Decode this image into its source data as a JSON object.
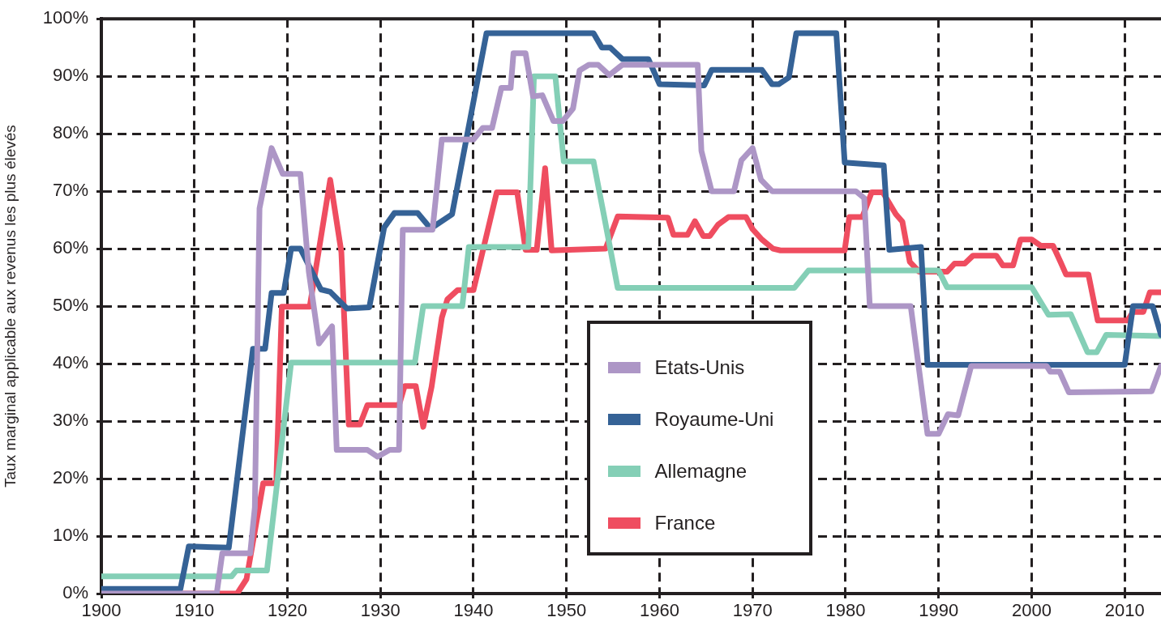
{
  "chart_data": {
    "type": "line",
    "ylabel": "Taux marginal applicable aux revenus les plus élevés",
    "xlim": [
      1900,
      2013.9
    ],
    "xticks": [
      1900,
      1910,
      1920,
      1930,
      1940,
      1950,
      1960,
      1970,
      1980,
      1990,
      2000,
      2010
    ],
    "ylim": [
      0,
      100
    ],
    "yticks": [
      {
        "value": 0,
        "label": "0%"
      },
      {
        "value": 10,
        "label": "10%"
      },
      {
        "value": 20,
        "label": "20%"
      },
      {
        "value": 30,
        "label": "30%"
      },
      {
        "value": 40,
        "label": "40%"
      },
      {
        "value": 50,
        "label": "50%"
      },
      {
        "value": 60,
        "label": "60%"
      },
      {
        "value": 70,
        "label": "70%"
      },
      {
        "value": 80,
        "label": "80%"
      },
      {
        "value": 90,
        "label": "90%"
      },
      {
        "value": 100,
        "label": "100%"
      }
    ],
    "grid": true,
    "legend": "bottom",
    "marker": "none",
    "line_style": "solid",
    "series": [
      {
        "name": "Etats-Unis",
        "color": "#ad96c6",
        "x": [
          1900,
          1912.4,
          1913,
          1916,
          1916.5,
          1917,
          1918.3,
          1919.5,
          1921.4,
          1922.3,
          1923.4,
          1924.8,
          1925.3,
          1928.6,
          1929.7,
          1931,
          1932,
          1932.4,
          1935.6,
          1936.6,
          1940,
          1941,
          1942,
          1943,
          1944,
          1944.3,
          1945.6,
          1946.4,
          1947.4,
          1948.6,
          1949.6,
          1950.7,
          1951.4,
          1952.4,
          1953.4,
          1954.6,
          1956,
          1964.1,
          1964.5,
          1965.6,
          1968,
          1968.8,
          1970,
          1970.9,
          1972.1,
          1981.1,
          1982,
          1982.6,
          1987,
          1988.8,
          1990,
          1991,
          1992.1,
          1993.5,
          2001.6,
          2002,
          2003,
          2004,
          2012.9,
          2013.9
        ],
        "values": [
          0,
          0,
          7,
          7,
          15,
          67,
          77.5,
          73,
          73,
          56,
          43.5,
          46.5,
          25,
          25,
          23.8,
          25,
          25,
          63.3,
          63.3,
          79,
          79,
          81,
          81,
          88,
          88,
          94,
          94,
          86.5,
          86.7,
          82.2,
          82.2,
          84.4,
          91,
          92,
          92,
          90.2,
          92,
          92,
          77,
          70,
          70,
          75.4,
          77.5,
          72,
          70,
          70,
          68.8,
          50,
          50,
          27.8,
          27.8,
          31.2,
          31,
          39.6,
          39.6,
          38.6,
          38.6,
          35,
          35.2,
          39.6
        ]
      },
      {
        "name": "Royaume-Uni",
        "color": "#356296",
        "x": [
          1900,
          1908.5,
          1909.4,
          1913.7,
          1916.3,
          1917.6,
          1918.3,
          1919.6,
          1920.4,
          1921.4,
          1923.6,
          1924.6,
          1926.4,
          1928.8,
          1930.4,
          1931.5,
          1934,
          1935.4,
          1937.7,
          1941.4,
          1952.9,
          1953.8,
          1954.7,
          1956,
          1958.8,
          1960,
          1964.8,
          1965.6,
          1971,
          1972.1,
          1972.8,
          1973.9,
          1974.7,
          1979,
          1979.9,
          1984.1,
          1984.7,
          1988.1,
          1988.8,
          2010,
          2010.9,
          2013,
          2013.9
        ],
        "values": [
          0.8,
          0.8,
          8.2,
          8,
          42.6,
          42.6,
          52.3,
          52.3,
          60,
          60,
          52.9,
          52.5,
          49.6,
          49.8,
          63.7,
          66.2,
          66.2,
          63.5,
          66,
          97.5,
          97.5,
          95,
          95,
          93,
          93,
          88.6,
          88.4,
          91.1,
          91.1,
          88.6,
          88.6,
          89.8,
          97.5,
          97.5,
          75,
          74.5,
          59.8,
          60.3,
          39.8,
          39.8,
          50,
          50,
          45
        ]
      },
      {
        "name": "Allemagne",
        "color": "#84cfb6",
        "x": [
          1900,
          1914,
          1914.5,
          1917.8,
          1920.4,
          1933.7,
          1934.6,
          1938.8,
          1939.5,
          1945.9,
          1946.5,
          1948.8,
          1949.7,
          1952.9,
          1954,
          1955.5,
          1974.5,
          1976,
          1990,
          1990.9,
          2000,
          2001.8,
          2004.2,
          2006,
          2007,
          2008,
          2013.9
        ],
        "values": [
          3,
          3,
          4,
          4,
          40.2,
          40.2,
          50,
          50,
          60.3,
          60.3,
          90,
          90,
          75.2,
          75.2,
          66,
          53.2,
          53.2,
          56.2,
          56.2,
          53.3,
          53.3,
          48.5,
          48.6,
          42,
          42,
          45,
          44.8
        ]
      },
      {
        "name": "France",
        "color": "#ef4d60",
        "x": [
          1900,
          1914.6,
          1915.6,
          1917.4,
          1918.8,
          1919.4,
          1922.4,
          1924.6,
          1925.8,
          1926.6,
          1927.8,
          1928.6,
          1932,
          1932.6,
          1933.8,
          1934.6,
          1935.5,
          1936.6,
          1937.2,
          1938.3,
          1940,
          1942.5,
          1944.7,
          1945.6,
          1946.8,
          1947.7,
          1948.4,
          1954.2,
          1955.5,
          1960.9,
          1961.5,
          1963,
          1963.8,
          1964.7,
          1965.4,
          1966.3,
          1967.4,
          1969.3,
          1970,
          1971,
          1972.2,
          1973,
          1979.9,
          1980.4,
          1981.8,
          1982.8,
          1984,
          1985.4,
          1986.1,
          1986.9,
          1987.9,
          1990.9,
          1991.7,
          1992.8,
          1993.7,
          1996.2,
          1996.9,
          1998,
          1998.8,
          2000,
          2001,
          2002.3,
          2003.1,
          2003.7,
          2006.1,
          2007.1,
          2010.3,
          2010.9,
          2012,
          2012.7,
          2013.9
        ],
        "values": [
          0,
          0,
          2.5,
          19.2,
          19.2,
          49.9,
          49.9,
          72,
          59.4,
          29.4,
          29.4,
          32.8,
          32.8,
          36.1,
          36.1,
          29,
          36,
          48,
          51.2,
          52.8,
          52.8,
          69.8,
          69.8,
          59.8,
          59.8,
          74,
          59.7,
          60,
          65.6,
          65.4,
          62.4,
          62.4,
          64.8,
          62.2,
          62.2,
          64.2,
          65.5,
          65.5,
          63.4,
          61.6,
          60,
          59.7,
          59.7,
          65.5,
          65.5,
          69.8,
          69.8,
          66,
          64.7,
          57.7,
          56,
          56,
          57.4,
          57.4,
          58.8,
          58.8,
          57.1,
          57.1,
          61.6,
          61.6,
          60.5,
          60.5,
          57.7,
          55.5,
          55.5,
          47.5,
          47.5,
          49,
          49,
          52.4,
          52.4
        ]
      }
    ]
  }
}
